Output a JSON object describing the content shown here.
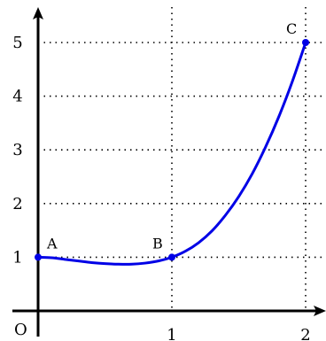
{
  "chart_data": {
    "type": "line",
    "origin_label": "O",
    "x_ticks": [
      "1",
      "2"
    ],
    "y_ticks": [
      "1",
      "2",
      "3",
      "4",
      "5"
    ],
    "xlim": [
      0,
      2.2
    ],
    "ylim": [
      0,
      5.5
    ],
    "grid": "dotted",
    "series": [
      {
        "color": "#0000e6",
        "x": [
          0,
          0.1,
          0.2,
          0.3,
          0.4,
          0.5,
          0.6,
          0.7,
          0.8,
          0.9,
          1.0,
          1.1,
          1.2,
          1.3,
          1.4,
          1.5,
          1.6,
          1.7,
          1.8,
          1.9,
          2.0
        ],
        "y": [
          1.0,
          0.99,
          0.96,
          0.93,
          0.9,
          0.88,
          0.87,
          0.87,
          0.89,
          0.93,
          1.0,
          1.11,
          1.27,
          1.49,
          1.78,
          2.13,
          2.55,
          3.05,
          3.62,
          4.27,
          5.0
        ]
      }
    ],
    "points": [
      {
        "label": "A",
        "x": 0,
        "y": 1
      },
      {
        "label": "B",
        "x": 1,
        "y": 1
      },
      {
        "label": "C",
        "x": 2,
        "y": 5
      }
    ]
  }
}
